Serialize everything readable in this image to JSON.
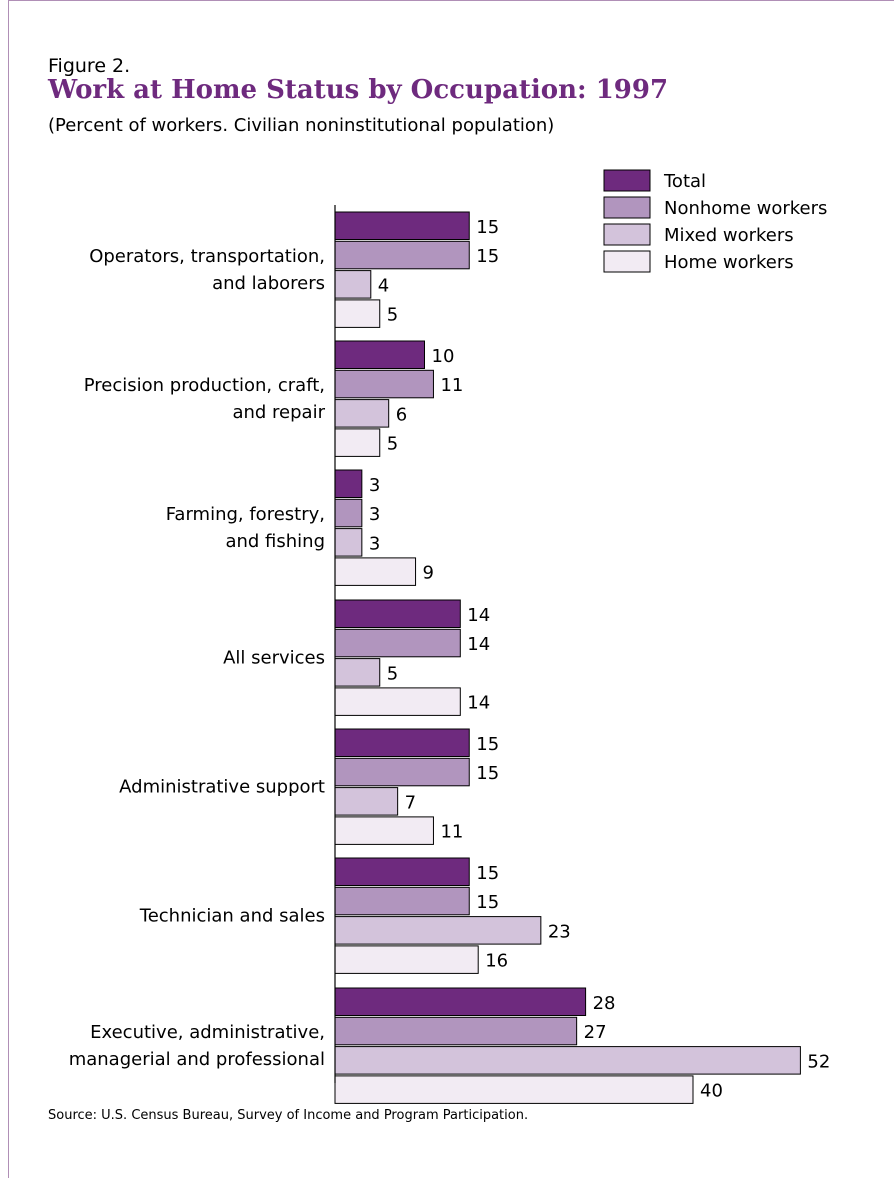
{
  "figure_label": "Figure 2.",
  "chart_data": {
    "type": "bar",
    "orientation": "horizontal",
    "title": "Work at Home Status by Occupation: 1997",
    "subtitle": "(Percent of workers. Civilian noninstitutional population)",
    "categories": [
      [
        "Operators, transportation,",
        "and laborers"
      ],
      [
        "Precision production, craft,",
        "and repair"
      ],
      [
        "Farming, forestry,",
        "and fishing"
      ],
      [
        "All services"
      ],
      [
        "Administrative support"
      ],
      [
        "Technician and sales"
      ],
      [
        "Executive, administrative,",
        "managerial and professional"
      ]
    ],
    "series": [
      {
        "name": "Total",
        "color": "#6e2a7e",
        "values": [
          15,
          10,
          3,
          14,
          15,
          15,
          28
        ]
      },
      {
        "name": "Nonhome workers",
        "color": "#b195be",
        "values": [
          15,
          11,
          3,
          14,
          15,
          15,
          27
        ]
      },
      {
        "name": "Mixed workers",
        "color": "#d3c3db",
        "values": [
          4,
          6,
          3,
          5,
          7,
          23,
          52
        ]
      },
      {
        "name": "Home workers",
        "color": "#f2ebf3",
        "values": [
          5,
          5,
          9,
          14,
          11,
          16,
          40
        ]
      }
    ],
    "legend_position": "top-right",
    "grid": false
  },
  "source": "Source:  U.S. Census Bureau, Survey of Income and Program Participation."
}
